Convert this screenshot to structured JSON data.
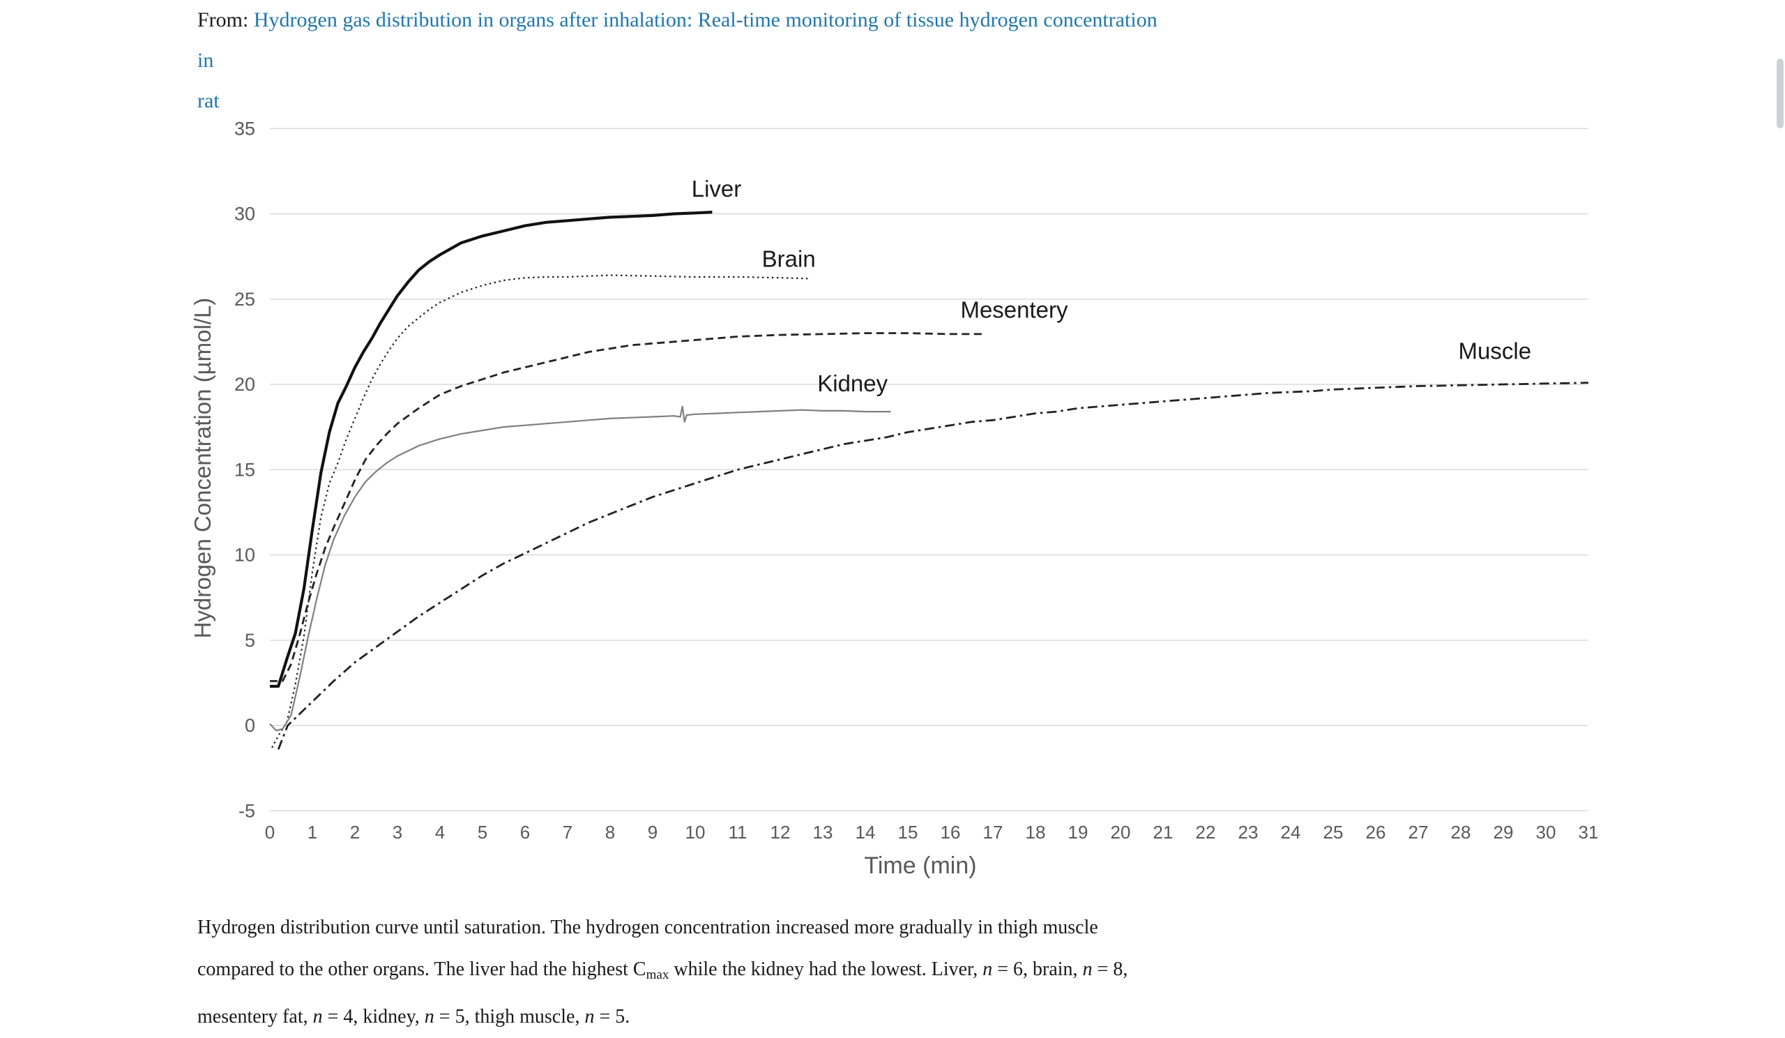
{
  "header": {
    "prefix": "From: ",
    "link_line1": "Hydrogen gas distribution in organs after inhalation: Real-time monitoring of tissue hydrogen concentration in",
    "link_line2": "rat",
    "link_color": "#2077ab"
  },
  "chart_data": {
    "type": "line",
    "title": "",
    "xlabel": "Time (min)",
    "ylabel": "Hydrogen Concentration (µmol/L)",
    "xlim": [
      0,
      31
    ],
    "ylim": [
      -5,
      35
    ],
    "x_ticks": [
      0,
      1,
      2,
      3,
      4,
      5,
      6,
      7,
      8,
      9,
      10,
      11,
      12,
      13,
      14,
      15,
      16,
      17,
      18,
      19,
      20,
      21,
      22,
      23,
      24,
      25,
      26,
      27,
      28,
      29,
      30,
      31
    ],
    "y_ticks": [
      -5,
      0,
      5,
      10,
      15,
      20,
      25,
      30,
      35
    ],
    "grid": "horizontal",
    "grid_color": "#d9d9d9",
    "tick_color": "#595959",
    "axis_label_color": "#595959",
    "series_label_color": "#1a1a1a",
    "legend_position": "inline-labels",
    "series": [
      {
        "name": "Liver",
        "style": "solid",
        "color": "#111111",
        "width": 4.2,
        "label_t": 10.5,
        "label_v": 31.0,
        "points": [
          [
            0,
            2.3
          ],
          [
            0.2,
            2.3
          ],
          [
            0.4,
            3.9
          ],
          [
            0.6,
            5.4
          ],
          [
            0.8,
            8.0
          ],
          [
            1.0,
            11.5
          ],
          [
            1.2,
            14.8
          ],
          [
            1.4,
            17.2
          ],
          [
            1.6,
            18.9
          ],
          [
            1.8,
            19.9
          ],
          [
            2.0,
            21.0
          ],
          [
            2.2,
            21.9
          ],
          [
            2.4,
            22.7
          ],
          [
            2.6,
            23.6
          ],
          [
            2.8,
            24.4
          ],
          [
            3.0,
            25.2
          ],
          [
            3.25,
            26.0
          ],
          [
            3.5,
            26.7
          ],
          [
            3.75,
            27.2
          ],
          [
            4.0,
            27.6
          ],
          [
            4.5,
            28.3
          ],
          [
            5.0,
            28.7
          ],
          [
            5.5,
            29.0
          ],
          [
            6.0,
            29.3
          ],
          [
            6.5,
            29.5
          ],
          [
            7.0,
            29.6
          ],
          [
            7.5,
            29.7
          ],
          [
            8.0,
            29.8
          ],
          [
            8.5,
            29.85
          ],
          [
            9.0,
            29.9
          ],
          [
            9.5,
            30.0
          ],
          [
            10.0,
            30.05
          ],
          [
            10.4,
            30.1
          ]
        ]
      },
      {
        "name": "Brain",
        "style": "dotted",
        "color": "#222222",
        "width": 2.2,
        "label_t": 12.2,
        "label_v": 26.9,
        "points": [
          [
            0.05,
            -1.3
          ],
          [
            0.2,
            -0.6
          ],
          [
            0.4,
            0.2
          ],
          [
            0.6,
            2.4
          ],
          [
            0.8,
            5.2
          ],
          [
            1.0,
            9.0
          ],
          [
            1.2,
            12.2
          ],
          [
            1.4,
            14.2
          ],
          [
            1.6,
            15.4
          ],
          [
            1.8,
            16.8
          ],
          [
            2.0,
            18.0
          ],
          [
            2.2,
            19.2
          ],
          [
            2.4,
            20.3
          ],
          [
            2.6,
            21.2
          ],
          [
            2.8,
            22.0
          ],
          [
            3.0,
            22.7
          ],
          [
            3.25,
            23.4
          ],
          [
            3.5,
            23.9
          ],
          [
            3.75,
            24.4
          ],
          [
            4.0,
            24.8
          ],
          [
            4.25,
            25.1
          ],
          [
            4.5,
            25.4
          ],
          [
            5.0,
            25.8
          ],
          [
            5.5,
            26.1
          ],
          [
            6.0,
            26.25
          ],
          [
            6.5,
            26.3
          ],
          [
            7.0,
            26.3
          ],
          [
            7.5,
            26.35
          ],
          [
            8.0,
            26.4
          ],
          [
            9.0,
            26.35
          ],
          [
            10.0,
            26.3
          ],
          [
            11.0,
            26.3
          ],
          [
            12.0,
            26.25
          ],
          [
            12.7,
            26.2
          ]
        ]
      },
      {
        "name": "Mesentery",
        "style": "dashed",
        "color": "#222222",
        "width": 2.8,
        "label_t": 17.5,
        "label_v": 23.9,
        "points": [
          [
            0,
            2.6
          ],
          [
            0.3,
            2.6
          ],
          [
            0.5,
            3.6
          ],
          [
            0.7,
            5.3
          ],
          [
            0.9,
            7.2
          ],
          [
            1.1,
            8.9
          ],
          [
            1.3,
            10.4
          ],
          [
            1.5,
            11.6
          ],
          [
            1.75,
            13.0
          ],
          [
            2.0,
            14.4
          ],
          [
            2.25,
            15.6
          ],
          [
            2.5,
            16.4
          ],
          [
            2.75,
            17.1
          ],
          [
            3.0,
            17.7
          ],
          [
            3.5,
            18.6
          ],
          [
            4.0,
            19.4
          ],
          [
            4.5,
            19.9
          ],
          [
            5.0,
            20.3
          ],
          [
            5.5,
            20.7
          ],
          [
            6.0,
            21.0
          ],
          [
            6.5,
            21.3
          ],
          [
            7.0,
            21.6
          ],
          [
            7.5,
            21.9
          ],
          [
            8.0,
            22.1
          ],
          [
            8.5,
            22.3
          ],
          [
            9.0,
            22.4
          ],
          [
            9.5,
            22.5
          ],
          [
            10.0,
            22.6
          ],
          [
            10.5,
            22.7
          ],
          [
            11.0,
            22.8
          ],
          [
            12.0,
            22.9
          ],
          [
            13.0,
            22.95
          ],
          [
            14.0,
            23.0
          ],
          [
            15.0,
            23.0
          ],
          [
            16.0,
            22.95
          ],
          [
            16.8,
            22.95
          ]
        ]
      },
      {
        "name": "Kidney",
        "style": "solid",
        "color": "#7f7f7f",
        "width": 2.2,
        "label_t": 13.7,
        "label_v": 19.6,
        "points": [
          [
            0,
            0.1
          ],
          [
            0.15,
            -0.3
          ],
          [
            0.3,
            -0.2
          ],
          [
            0.5,
            0.6
          ],
          [
            0.7,
            2.8
          ],
          [
            0.9,
            5.2
          ],
          [
            1.1,
            7.4
          ],
          [
            1.3,
            9.4
          ],
          [
            1.5,
            10.9
          ],
          [
            1.75,
            12.3
          ],
          [
            2.0,
            13.4
          ],
          [
            2.25,
            14.3
          ],
          [
            2.5,
            14.9
          ],
          [
            2.75,
            15.4
          ],
          [
            3.0,
            15.8
          ],
          [
            3.5,
            16.4
          ],
          [
            4.0,
            16.8
          ],
          [
            4.5,
            17.1
          ],
          [
            5.0,
            17.3
          ],
          [
            5.5,
            17.5
          ],
          [
            6.0,
            17.6
          ],
          [
            6.5,
            17.7
          ],
          [
            7.0,
            17.8
          ],
          [
            7.5,
            17.9
          ],
          [
            8.0,
            18.0
          ],
          [
            8.5,
            18.05
          ],
          [
            9.0,
            18.1
          ],
          [
            9.5,
            18.15
          ],
          [
            9.65,
            18.1
          ],
          [
            9.7,
            18.7
          ],
          [
            9.75,
            17.8
          ],
          [
            9.8,
            18.2
          ],
          [
            10.0,
            18.25
          ],
          [
            10.5,
            18.3
          ],
          [
            11.0,
            18.35
          ],
          [
            11.5,
            18.4
          ],
          [
            12.0,
            18.45
          ],
          [
            12.5,
            18.5
          ],
          [
            13.0,
            18.45
          ],
          [
            13.5,
            18.45
          ],
          [
            14.0,
            18.4
          ],
          [
            14.6,
            18.4
          ]
        ]
      },
      {
        "name": "Muscle",
        "style": "dashdot",
        "color": "#222222",
        "width": 2.8,
        "label_t": 28.8,
        "label_v": 21.5,
        "points": [
          [
            0.2,
            -1.4
          ],
          [
            0.42,
            0
          ],
          [
            1,
            1.4
          ],
          [
            1.5,
            2.6
          ],
          [
            2,
            3.7
          ],
          [
            2.5,
            4.6
          ],
          [
            3,
            5.5
          ],
          [
            3.5,
            6.4
          ],
          [
            4,
            7.2
          ],
          [
            4.5,
            8.0
          ],
          [
            5,
            8.8
          ],
          [
            5.5,
            9.5
          ],
          [
            6,
            10.1
          ],
          [
            6.5,
            10.7
          ],
          [
            7,
            11.3
          ],
          [
            7.5,
            11.9
          ],
          [
            8,
            12.4
          ],
          [
            8.5,
            12.9
          ],
          [
            9,
            13.4
          ],
          [
            9.5,
            13.8
          ],
          [
            10,
            14.2
          ],
          [
            10.5,
            14.6
          ],
          [
            11,
            15.0
          ],
          [
            11.5,
            15.3
          ],
          [
            12,
            15.6
          ],
          [
            12.5,
            15.9
          ],
          [
            13,
            16.2
          ],
          [
            13.5,
            16.5
          ],
          [
            14,
            16.7
          ],
          [
            14.5,
            16.9
          ],
          [
            15,
            17.2
          ],
          [
            15.5,
            17.4
          ],
          [
            16,
            17.6
          ],
          [
            16.5,
            17.8
          ],
          [
            17,
            17.9
          ],
          [
            17.5,
            18.1
          ],
          [
            18,
            18.3
          ],
          [
            18.5,
            18.4
          ],
          [
            19,
            18.6
          ],
          [
            19.5,
            18.7
          ],
          [
            20,
            18.8
          ],
          [
            20.5,
            18.9
          ],
          [
            21,
            19.0
          ],
          [
            21.5,
            19.1
          ],
          [
            22,
            19.2
          ],
          [
            22.5,
            19.3
          ],
          [
            23,
            19.4
          ],
          [
            23.5,
            19.5
          ],
          [
            24,
            19.55
          ],
          [
            24.5,
            19.6
          ],
          [
            25,
            19.7
          ],
          [
            25.5,
            19.75
          ],
          [
            26,
            19.8
          ],
          [
            26.5,
            19.85
          ],
          [
            27,
            19.9
          ],
          [
            27.5,
            19.92
          ],
          [
            28,
            19.95
          ],
          [
            28.5,
            19.97
          ],
          [
            29,
            20.0
          ],
          [
            29.5,
            20.02
          ],
          [
            30,
            20.05
          ],
          [
            30.5,
            20.07
          ],
          [
            31,
            20.1
          ]
        ]
      }
    ]
  },
  "caption": {
    "lines": [
      [
        {
          "text": "Hydrogen distribution curve until saturation. The hydrogen concentration increased more gradually in thigh muscle",
          "style": "normal"
        }
      ],
      [
        {
          "text": "compared to the other organs. The liver had the highest C",
          "style": "normal"
        },
        {
          "text": "max",
          "style": "subscript"
        },
        {
          "text": " while the kidney had the lowest. Liver, ",
          "style": "normal"
        },
        {
          "text": "n",
          "style": "italic"
        },
        {
          "text": " = 6, brain, ",
          "style": "normal"
        },
        {
          "text": "n",
          "style": "italic"
        },
        {
          "text": " = 8,",
          "style": "normal"
        }
      ],
      [
        {
          "text": "mesentery fat, ",
          "style": "normal"
        },
        {
          "text": "n",
          "style": "italic"
        },
        {
          "text": " = 4, kidney, ",
          "style": "normal"
        },
        {
          "text": "n",
          "style": "italic"
        },
        {
          "text": " = 5, thigh muscle, ",
          "style": "normal"
        },
        {
          "text": "n",
          "style": "italic"
        },
        {
          "text": " = 5.",
          "style": "normal"
        }
      ]
    ]
  }
}
